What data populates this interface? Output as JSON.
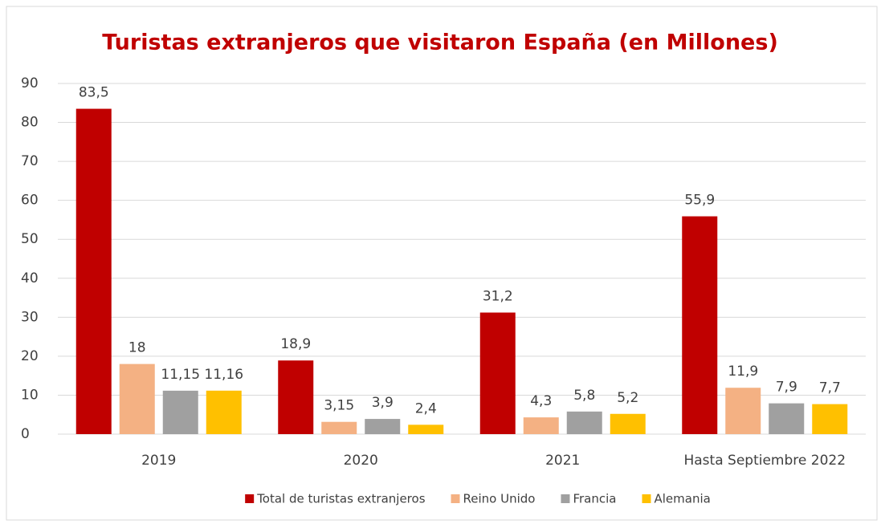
{
  "chart_data": {
    "type": "bar",
    "title": "Turistas extranjeros que visitaron España (en Millones)",
    "categories": [
      "2019",
      "2020",
      "2021",
      "Hasta Septiembre 2022"
    ],
    "series": [
      {
        "name": "Total de turistas extranjeros",
        "color": "#c00000",
        "values": [
          83.5,
          18.9,
          31.2,
          55.9
        ],
        "value_labels": [
          "83,5",
          "18,9",
          "31,2",
          "55,9"
        ]
      },
      {
        "name": "Reino Unido",
        "color": "#f4b183",
        "values": [
          18,
          3.15,
          4.3,
          11.9
        ],
        "value_labels": [
          "18",
          "3,15",
          "4,3",
          "11,9"
        ]
      },
      {
        "name": "Francia",
        "color": "#a0a0a0",
        "values": [
          11.15,
          3.9,
          5.8,
          7.9
        ],
        "value_labels": [
          "11,15",
          "3,9",
          "5,8",
          "7,9"
        ]
      },
      {
        "name": "Alemania",
        "color": "#ffc000",
        "values": [
          11.16,
          2.4,
          5.2,
          7.7
        ],
        "value_labels": [
          "11,16",
          "2,4",
          "5,2",
          "7,7"
        ]
      }
    ],
    "ylim": [
      0,
      90
    ],
    "yticks": [
      0,
      10,
      20,
      30,
      40,
      50,
      60,
      70,
      80,
      90
    ],
    "grid": true,
    "legend": "bottom"
  }
}
